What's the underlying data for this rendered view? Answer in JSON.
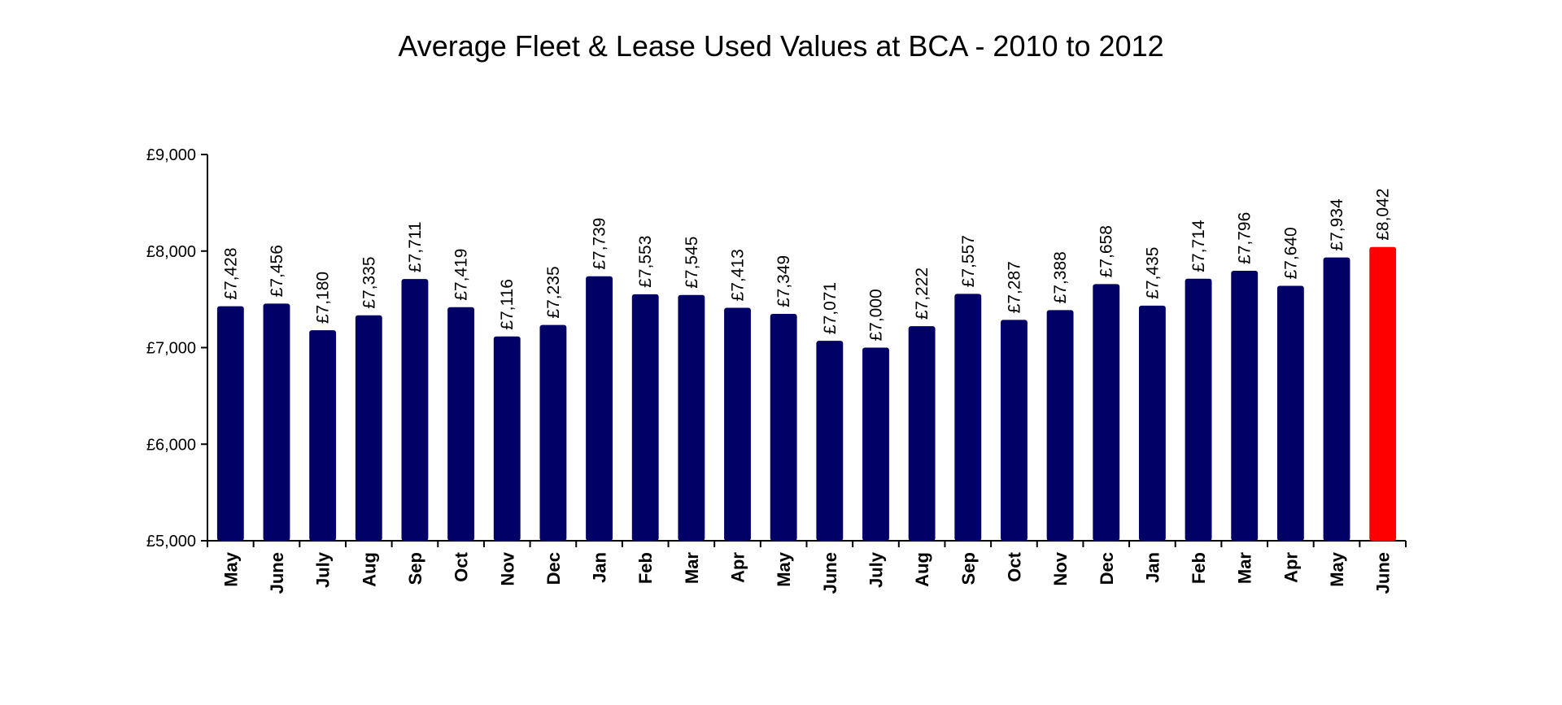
{
  "chart_data": {
    "type": "bar",
    "title": "Average Fleet & Lease Used Values at BCA - 2010 to 2012",
    "xlabel": "",
    "ylabel": "",
    "ylim": [
      5000,
      9000
    ],
    "yticks": [
      5000,
      6000,
      7000,
      8000,
      9000
    ],
    "ytick_labels": [
      "£5,000",
      "£6,000",
      "£7,000",
      "£8,000",
      "£9,000"
    ],
    "grid": false,
    "legend": "none",
    "categories": [
      "May",
      "June",
      "July",
      "Aug",
      "Sep",
      "Oct",
      "Nov",
      "Dec",
      "Jan",
      "Feb",
      "Mar",
      "Apr",
      "May",
      "June",
      "July",
      "Aug",
      "Sep",
      "Oct",
      "Nov",
      "Dec",
      "Jan",
      "Feb",
      "Mar",
      "Apr",
      "May",
      "June"
    ],
    "values": [
      7428,
      7456,
      7180,
      7335,
      7711,
      7419,
      7116,
      7235,
      7739,
      7553,
      7545,
      7413,
      7349,
      7071,
      7000,
      7222,
      7557,
      7287,
      7388,
      7658,
      7435,
      7714,
      7796,
      7640,
      7934,
      8042
    ],
    "value_labels": [
      "£7,428",
      "£7,456",
      "£7,180",
      "£7,335",
      "£7,711",
      "£7,419",
      "£7,116",
      "£7,235",
      "£7,739",
      "£7,553",
      "£7,545",
      "£7,413",
      "£7,349",
      "£7,071",
      "£7,000",
      "£7,222",
      "£7,557",
      "£7,287",
      "£7,388",
      "£7,658",
      "£7,435",
      "£7,714",
      "£7,796",
      "£7,640",
      "£7,934",
      "£8,042"
    ],
    "highlight_index": 25,
    "colors": {
      "bar": "#000066",
      "highlight": "#ff0000",
      "axis": "#000000"
    }
  }
}
